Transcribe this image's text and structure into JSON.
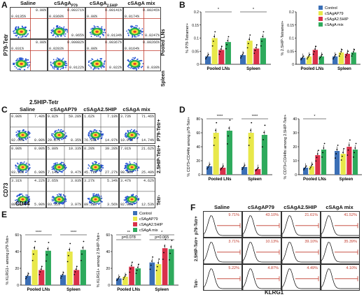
{
  "panelA": {
    "label": "A",
    "columns": [
      "Saline",
      "cSAgA",
      "cSAgA",
      "cSAgA mix"
    ],
    "column_subs": [
      "",
      "P79",
      "2.5HIP",
      ""
    ],
    "rows": [
      "Pooled LNs",
      "Spleen"
    ],
    "y_axis": "P79-Tetr",
    "x_axis": "2.5HIP-Tetr",
    "top_right": [
      "0.00%",
      "0.00371%",
      "0.00141%",
      "0.00245%",
      "0.00%",
      "0.00082%",
      "0.00367%",
      "0.00266%"
    ],
    "top_left": [
      "0.0135%",
      "0.0369%",
      "0.00%",
      "0.0174%",
      "0.031%",
      "0.0283%",
      "0.00%",
      "0.0164%"
    ],
    "bottom_right": [
      "",
      "0.065%",
      "0.0134%",
      "0.0247%",
      "",
      "0.0122%",
      "0.022%",
      "0.039%"
    ]
  },
  "panelB": {
    "label": "B",
    "legend": [
      "Control",
      "cSAgAP79",
      "cSAgA2.5HIP",
      "cSAgA mix"
    ],
    "colors": [
      "#3b6fb6",
      "#e8e84a",
      "#d9304a",
      "#2eaa5c"
    ],
    "left_ylabel": "% P79-Tetramer+",
    "right_ylabel": "% 2.5HIP-Tetramer+",
    "groups": [
      "Pooled LNs",
      "Spleen"
    ],
    "sig": [
      "*",
      "*"
    ]
  },
  "panelC": {
    "label": "C",
    "columns": [
      "Saline",
      "cSAgAP79",
      "cSAgA2.5HIP",
      "cSAgA mix"
    ],
    "rows": [
      "P79-Tetr+",
      "2.5HIP-Tetr+",
      "Tetr-"
    ],
    "y_axis": "CD73",
    "x_axis": "CD44",
    "tl": [
      "0.00%",
      "9.82%",
      "1.62%",
      "3.73%",
      "0.00%",
      "5.80%",
      "8.20%",
      "7.01%",
      "3.31%",
      "2.65%",
      "3.27%",
      "3.47%"
    ],
    "tr": [
      "7.40%",
      "59.28%",
      "7.19%",
      "71.46%",
      "0.00%",
      "10.33%",
      "39.28%",
      "21.62%",
      "4.22%",
      "3.93%",
      "5.34%",
      "4.62%"
    ],
    "bl": [
      "92.60%",
      "29.87%",
      "76.10%",
      "10.07%",
      "93.10%",
      "7.14%",
      "45.71%",
      "98.86%",
      "88.92%",
      "93.35%",
      "89.31%",
      "92.06%"
    ],
    "br": [
      "0.00%",
      "8.35%",
      "14.97%",
      "14.74%",
      "6.90%",
      "9.47%",
      "27.27%",
      "25.49%",
      "5.90%",
      "3.97%",
      "3.56%",
      "12.53%"
    ]
  },
  "panelD": {
    "label": "D",
    "left_ylabel": "% CD73+CD44hi among p79-Tetr+",
    "right_ylabel": "% CD73+CD44hi among 2.5HIP-Tetr+",
    "groups": [
      "Pooled LNs",
      "Spleen"
    ],
    "sig_left": [
      "****",
      "****"
    ],
    "sig_right": [
      "*"
    ]
  },
  "panelE": {
    "label": "E",
    "legend": [
      "Control",
      "cSAgAP79",
      "cSAgA2.5HIP",
      "cSAgA mix"
    ],
    "left_ylabel": "% KLRG1+ among p79-Tetr+",
    "right_ylabel": "% KLRG1+ among 2.5HIP-Tetr+",
    "groups": [
      "Pooled LNs",
      "Spleen"
    ],
    "sig_left": [
      "****",
      "****",
      "***",
      "**",
      "***",
      "**",
      "*",
      "**"
    ],
    "sig_right": [
      "**",
      "*",
      "p=0.078",
      "p=0.065"
    ]
  },
  "panelF": {
    "label": "F",
    "columns": [
      "Saline",
      "cSAgAP79",
      "cSAgA2.5HIP",
      "cSAgA mix"
    ],
    "rows": [
      "p79-Tetr+",
      "2.5HIP-Tetr+",
      "Tetr-"
    ],
    "x_axis": "KLRG1",
    "pcts": [
      "9.71%",
      "43.10%",
      "21.61%",
      "41.52%",
      "3.71%",
      "10.13%",
      "39.10%",
      "35.39%",
      "5.22%",
      "4.87%",
      "4.49%",
      "4.10%"
    ]
  },
  "chart_data": [
    {
      "type": "bar",
      "title": "",
      "ylabel": "% P79-Tetramer+",
      "categories": [
        "Pooled LNs",
        "Spleen"
      ],
      "ylim": [
        0,
        0.2
      ],
      "series": [
        {
          "name": "Control",
          "values": [
            0.03,
            0.035
          ]
        },
        {
          "name": "cSAgAP79",
          "values": [
            0.1,
            0.09
          ]
        },
        {
          "name": "cSAgA2.5HIP",
          "values": [
            0.055,
            0.06
          ]
        },
        {
          "name": "cSAgA mix",
          "values": [
            0.085,
            0.1
          ]
        }
      ]
    },
    {
      "type": "bar",
      "title": "",
      "ylabel": "% 2.5HIP-Tetramer+",
      "categories": [
        "Pooled LNs",
        "Spleen"
      ],
      "ylim": [
        0,
        0.2
      ],
      "series": [
        {
          "name": "Control",
          "values": [
            0.025,
            0.03
          ]
        },
        {
          "name": "cSAgAP79",
          "values": [
            0.03,
            0.045
          ]
        },
        {
          "name": "cSAgA2.5HIP",
          "values": [
            0.055,
            0.04
          ]
        },
        {
          "name": "cSAgA mix",
          "values": [
            0.03,
            0.045
          ]
        }
      ]
    },
    {
      "type": "bar",
      "title": "",
      "ylabel": "% CD73+CD44hi among p79-Tetr+",
      "categories": [
        "Pooled LNs",
        "Spleen"
      ],
      "ylim": [
        0,
        80
      ],
      "series": [
        {
          "name": "Control",
          "values": [
            12,
            11
          ]
        },
        {
          "name": "cSAgAP79",
          "values": [
            60,
            60
          ]
        },
        {
          "name": "cSAgA2.5HIP",
          "values": [
            10,
            8
          ]
        },
        {
          "name": "cSAgA mix",
          "values": [
            63,
            57
          ]
        }
      ]
    },
    {
      "type": "bar",
      "title": "",
      "ylabel": "% CD73+CD44hi among 2.5HIP-Tetr+",
      "categories": [
        "Pooled LNs",
        "Spleen"
      ],
      "ylim": [
        0,
        40
      ],
      "series": [
        {
          "name": "Control",
          "values": [
            5,
            17
          ]
        },
        {
          "name": "cSAgAP79",
          "values": [
            6,
            15
          ]
        },
        {
          "name": "cSAgA2.5HIP",
          "values": [
            14,
            20
          ]
        },
        {
          "name": "cSAgA mix",
          "values": [
            18,
            18
          ]
        }
      ]
    },
    {
      "type": "bar",
      "title": "",
      "ylabel": "% KLRG1+ among p79-Tetr+",
      "categories": [
        "Pooled LNs",
        "Spleen"
      ],
      "ylim": [
        0,
        60
      ],
      "series": [
        {
          "name": "Control",
          "values": [
            11,
            12
          ]
        },
        {
          "name": "cSAgAP79",
          "values": [
            42,
            40
          ]
        },
        {
          "name": "cSAgA2.5HIP",
          "values": [
            18,
            18
          ]
        },
        {
          "name": "cSAgA mix",
          "values": [
            41,
            42
          ]
        }
      ]
    },
    {
      "type": "bar",
      "title": "",
      "ylabel": "% KLRG1+ among 2.5HIP-Tetr+",
      "categories": [
        "Pooled LNs",
        "Spleen"
      ],
      "ylim": [
        0,
        60
      ],
      "series": [
        {
          "name": "Control",
          "values": [
            8,
            27
          ]
        },
        {
          "name": "cSAgAP79",
          "values": [
            10,
            25
          ]
        },
        {
          "name": "cSAgA2.5HIP",
          "values": [
            22,
            44
          ]
        },
        {
          "name": "cSAgA mix",
          "values": [
            20,
            43
          ]
        }
      ]
    }
  ]
}
